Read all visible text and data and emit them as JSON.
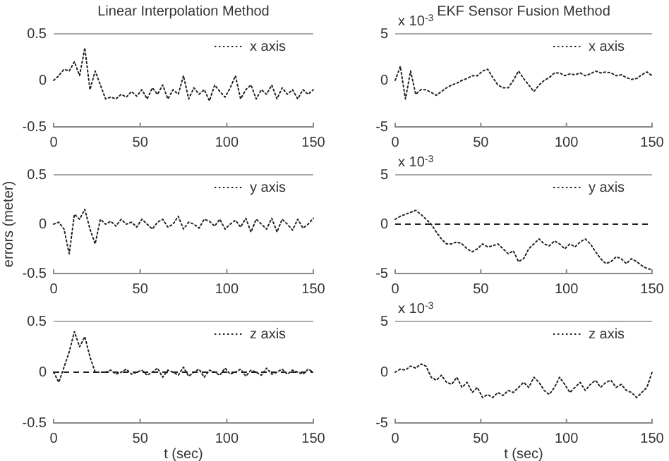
{
  "chart_data": [
    {
      "type": "line",
      "title": "Linear Interpolation Method",
      "x": [
        0,
        3,
        6,
        9,
        12,
        15,
        18,
        21,
        24,
        27,
        30,
        33,
        36,
        39,
        42,
        45,
        48,
        51,
        54,
        57,
        60,
        63,
        66,
        69,
        72,
        75,
        78,
        81,
        84,
        87,
        90,
        93,
        96,
        99,
        102,
        105,
        108,
        111,
        114,
        117,
        120,
        123,
        126,
        129,
        132,
        135,
        138,
        141,
        144,
        147,
        150
      ],
      "xlim": [
        0,
        150
      ],
      "xticks": [
        0,
        50,
        100,
        150
      ],
      "ylim": [
        -0.5,
        0.5
      ],
      "yticks": [
        -0.5,
        0,
        0.5
      ],
      "legend": "top right",
      "line_style": "dotted",
      "series": [
        {
          "name": "x axis",
          "color": "#222222",
          "values": [
            0,
            0.05,
            0.12,
            0.1,
            0.2,
            0.05,
            0.35,
            -0.1,
            0.1,
            -0.05,
            -0.2,
            -0.18,
            -0.2,
            -0.15,
            -0.18,
            -0.12,
            -0.17,
            -0.1,
            -0.2,
            -0.08,
            -0.15,
            -0.05,
            -0.2,
            -0.1,
            -0.15,
            0.05,
            -0.2,
            -0.08,
            -0.15,
            -0.1,
            -0.22,
            -0.05,
            -0.12,
            -0.18,
            -0.08,
            0.05,
            -0.2,
            -0.1,
            -0.05,
            -0.2,
            -0.1,
            -0.15,
            -0.05,
            -0.2,
            -0.08,
            -0.15,
            -0.1,
            -0.2,
            -0.1,
            -0.15,
            -0.1
          ]
        }
      ]
    },
    {
      "type": "line",
      "title": "EKF Sensor Fusion Method",
      "annotations": [
        "x 10$^{-3}$"
      ],
      "x": [
        0,
        3,
        6,
        9,
        12,
        15,
        18,
        21,
        24,
        27,
        30,
        33,
        36,
        39,
        42,
        45,
        48,
        51,
        54,
        57,
        60,
        63,
        66,
        69,
        72,
        75,
        78,
        81,
        84,
        87,
        90,
        93,
        96,
        99,
        102,
        105,
        108,
        111,
        114,
        117,
        120,
        123,
        126,
        129,
        132,
        135,
        138,
        141,
        144,
        147,
        150
      ],
      "xlim": [
        0,
        150
      ],
      "xticks": [
        0,
        50,
        100,
        150
      ],
      "ylim": [
        -5,
        5
      ],
      "yticks": [
        -5,
        0,
        5
      ],
      "legend": "top right",
      "line_style": "dotted",
      "series": [
        {
          "name": "x axis",
          "color": "#222222",
          "values": [
            0,
            1.5,
            -2,
            1,
            -1.5,
            -1,
            -1,
            -1.3,
            -1.6,
            -1.2,
            -0.8,
            -0.5,
            -0.3,
            0,
            0.2,
            0.5,
            0.5,
            1,
            1.2,
            0.3,
            -0.5,
            -0.8,
            -0.8,
            0,
            1,
            0.2,
            -0.5,
            -1.2,
            -0.5,
            0,
            0.3,
            0.8,
            0.8,
            0.5,
            0.7,
            0.6,
            0.8,
            0.5,
            0.7,
            1,
            0.8,
            0.9,
            0.8,
            0.5,
            0.6,
            0.3,
            0.1,
            0.2,
            0.6,
            0.9,
            0.5
          ]
        }
      ]
    },
    {
      "type": "line",
      "ylabel": "errors (meter)",
      "x": [
        0,
        3,
        6,
        9,
        12,
        15,
        18,
        21,
        24,
        27,
        30,
        33,
        36,
        39,
        42,
        45,
        48,
        51,
        54,
        57,
        60,
        63,
        66,
        69,
        72,
        75,
        78,
        81,
        84,
        87,
        90,
        93,
        96,
        99,
        102,
        105,
        108,
        111,
        114,
        117,
        120,
        123,
        126,
        129,
        132,
        135,
        138,
        141,
        144,
        147,
        150
      ],
      "xlim": [
        0,
        150
      ],
      "xticks": [
        0,
        50,
        100,
        150
      ],
      "ylim": [
        -0.5,
        0.5
      ],
      "yticks": [
        -0.5,
        0,
        0.5
      ],
      "legend": "top right",
      "line_style": "dotted",
      "series": [
        {
          "name": "y axis",
          "color": "#222222",
          "values": [
            0,
            0.02,
            -0.05,
            -0.3,
            0.1,
            0.05,
            0.15,
            -0.05,
            -0.2,
            0.05,
            0,
            0.03,
            -0.02,
            0.05,
            0,
            0.02,
            -0.03,
            0.05,
            0,
            -0.05,
            0.02,
            0.05,
            -0.03,
            0,
            0.08,
            -0.05,
            0.02,
            0,
            -0.04,
            0.05,
            0.03,
            -0.02,
            0.05,
            -0.05,
            0,
            0.04,
            -0.03,
            0.06,
            -0.08,
            0.05,
            0,
            -0.05,
            0.06,
            -0.08,
            0.05,
            0,
            -0.06,
            0.05,
            -0.04,
            0,
            0.06
          ]
        }
      ]
    },
    {
      "type": "line",
      "annotations": [
        "x 10$^{-3}$"
      ],
      "x": [
        0,
        3,
        6,
        9,
        12,
        15,
        18,
        21,
        24,
        27,
        30,
        33,
        36,
        39,
        42,
        45,
        48,
        51,
        54,
        57,
        60,
        63,
        66,
        69,
        72,
        75,
        78,
        81,
        84,
        87,
        90,
        93,
        96,
        99,
        102,
        105,
        108,
        111,
        114,
        117,
        120,
        123,
        126,
        129,
        132,
        135,
        138,
        141,
        144,
        147,
        150
      ],
      "xlim": [
        0,
        150
      ],
      "xticks": [
        0,
        50,
        100,
        150
      ],
      "ylim": [
        -5,
        5
      ],
      "yticks": [
        -5,
        0,
        5
      ],
      "legend": "top right",
      "line_style": "dotted",
      "ref_lines": [
        {
          "axis": "y",
          "value": 0,
          "color": "#222222",
          "line_style": "dashed"
        }
      ],
      "series": [
        {
          "name": "y axis",
          "color": "#222222",
          "values": [
            0.5,
            0.8,
            1,
            1.2,
            1.4,
            1,
            0.5,
            0,
            -0.8,
            -1.5,
            -2,
            -2,
            -1.8,
            -2,
            -2.5,
            -2.8,
            -2.5,
            -2,
            -2.3,
            -2.2,
            -2,
            -2.5,
            -3,
            -2.7,
            -3.8,
            -3.5,
            -2.5,
            -2,
            -1.5,
            -2,
            -2.2,
            -1.7,
            -2,
            -2.5,
            -2,
            -2.3,
            -1.8,
            -1.5,
            -2,
            -2.8,
            -3.5,
            -4,
            -3.8,
            -3.3,
            -3.5,
            -4,
            -3.5,
            -3.8,
            -4.2,
            -4.5,
            -4.6
          ]
        }
      ]
    },
    {
      "type": "line",
      "xlabel": "t (sec)",
      "x": [
        0,
        3,
        6,
        9,
        12,
        15,
        18,
        21,
        24,
        27,
        30,
        33,
        36,
        39,
        42,
        45,
        48,
        51,
        54,
        57,
        60,
        63,
        66,
        69,
        72,
        75,
        78,
        81,
        84,
        87,
        90,
        93,
        96,
        99,
        102,
        105,
        108,
        111,
        114,
        117,
        120,
        123,
        126,
        129,
        132,
        135,
        138,
        141,
        144,
        147,
        150
      ],
      "xlim": [
        0,
        150
      ],
      "xticks": [
        0,
        50,
        100,
        150
      ],
      "ylim": [
        -0.5,
        0.5
      ],
      "yticks": [
        -0.5,
        0,
        0.5
      ],
      "legend": "top right",
      "line_style": "dotted",
      "ref_lines": [
        {
          "axis": "y",
          "value": 0,
          "color": "#222222",
          "line_style": "dashed"
        }
      ],
      "series": [
        {
          "name": "z axis",
          "color": "#222222",
          "values": [
            0,
            -0.1,
            0.05,
            0.2,
            0.4,
            0.25,
            0.35,
            0.15,
            0,
            0,
            0,
            0.02,
            -0.02,
            0,
            0.03,
            -0.02,
            0,
            0.02,
            -0.03,
            0,
            0.04,
            -0.05,
            0.02,
            0,
            -0.03,
            0.05,
            -0.04,
            0,
            0.03,
            -0.05,
            0.02,
            0,
            -0.03,
            0.04,
            -0.02,
            0,
            0.03,
            -0.04,
            0.02,
            0,
            -0.03,
            0.04,
            -0.02,
            0,
            0.03,
            -0.02,
            0.02,
            0,
            -0.02,
            0.03,
            0
          ]
        }
      ]
    },
    {
      "type": "line",
      "xlabel": "t (sec)",
      "annotations": [
        "x 10$^{-3}$"
      ],
      "x": [
        0,
        3,
        6,
        9,
        12,
        15,
        18,
        21,
        24,
        27,
        30,
        33,
        36,
        39,
        42,
        45,
        48,
        51,
        54,
        57,
        60,
        63,
        66,
        69,
        72,
        75,
        78,
        81,
        84,
        87,
        90,
        93,
        96,
        99,
        102,
        105,
        108,
        111,
        114,
        117,
        120,
        123,
        126,
        129,
        132,
        135,
        138,
        141,
        144,
        147,
        150
      ],
      "xlim": [
        0,
        150
      ],
      "xticks": [
        0,
        50,
        100,
        150
      ],
      "ylim": [
        -5,
        5
      ],
      "yticks": [
        -5,
        0,
        5
      ],
      "legend": "top right",
      "line_style": "dotted",
      "series": [
        {
          "name": "z axis",
          "color": "#222222",
          "values": [
            0,
            0.3,
            0.2,
            0.6,
            0.4,
            0.8,
            0.6,
            -0.5,
            -0.8,
            -0.3,
            -1,
            -1.2,
            -0.5,
            -1.5,
            -1,
            -2,
            -1.5,
            -2.5,
            -2.2,
            -2.5,
            -2,
            -2.3,
            -1.8,
            -2,
            -1.5,
            -1,
            -1.5,
            -0.5,
            -1,
            -1.8,
            -2.2,
            -1.5,
            -0.5,
            -1.2,
            -2,
            -1.5,
            -1,
            -1.8,
            -1.2,
            -0.8,
            -1.5,
            -1,
            -0.8,
            -1.5,
            -1.2,
            -1.8,
            -2,
            -2.5,
            -2,
            -1.5,
            0
          ]
        }
      ]
    }
  ]
}
